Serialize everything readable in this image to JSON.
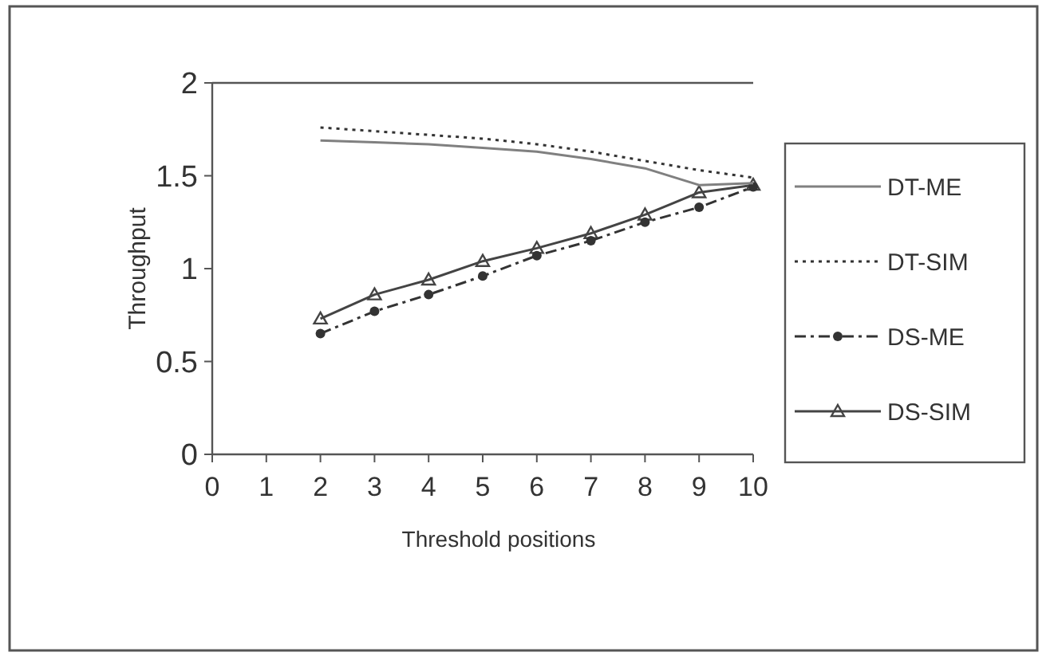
{
  "chart_data": {
    "type": "line",
    "xlabel": "Threshold positions",
    "ylabel": "Throughput",
    "x": [
      2,
      3,
      4,
      5,
      6,
      7,
      8,
      9,
      10
    ],
    "xlim": [
      0,
      10
    ],
    "xticks": [
      0,
      1,
      2,
      3,
      4,
      5,
      6,
      7,
      8,
      9,
      10
    ],
    "ylim": [
      0,
      2
    ],
    "yticks": [
      0,
      0.5,
      1,
      1.5,
      2
    ],
    "legend": "right",
    "grid": false,
    "series": [
      {
        "name": "DT-ME",
        "color": "#808080",
        "line_style": "solid",
        "marker": "none",
        "values": [
          1.69,
          1.68,
          1.67,
          1.65,
          1.63,
          1.59,
          1.54,
          1.45,
          1.46
        ]
      },
      {
        "name": "DT-SIM",
        "color": "#333333",
        "line_style": "dotted",
        "marker": "none",
        "values": [
          1.76,
          1.74,
          1.72,
          1.7,
          1.67,
          1.63,
          1.58,
          1.53,
          1.49
        ]
      },
      {
        "name": "DS-ME",
        "color": "#333333",
        "line_style": "dashed",
        "marker": "circle",
        "values": [
          0.65,
          0.77,
          0.86,
          0.96,
          1.07,
          1.15,
          1.25,
          1.33,
          1.44
        ]
      },
      {
        "name": "DS-SIM",
        "color": "#444444",
        "line_style": "solid",
        "marker": "triangle",
        "values": [
          0.73,
          0.86,
          0.94,
          1.04,
          1.11,
          1.19,
          1.29,
          1.41,
          1.45
        ]
      }
    ]
  }
}
